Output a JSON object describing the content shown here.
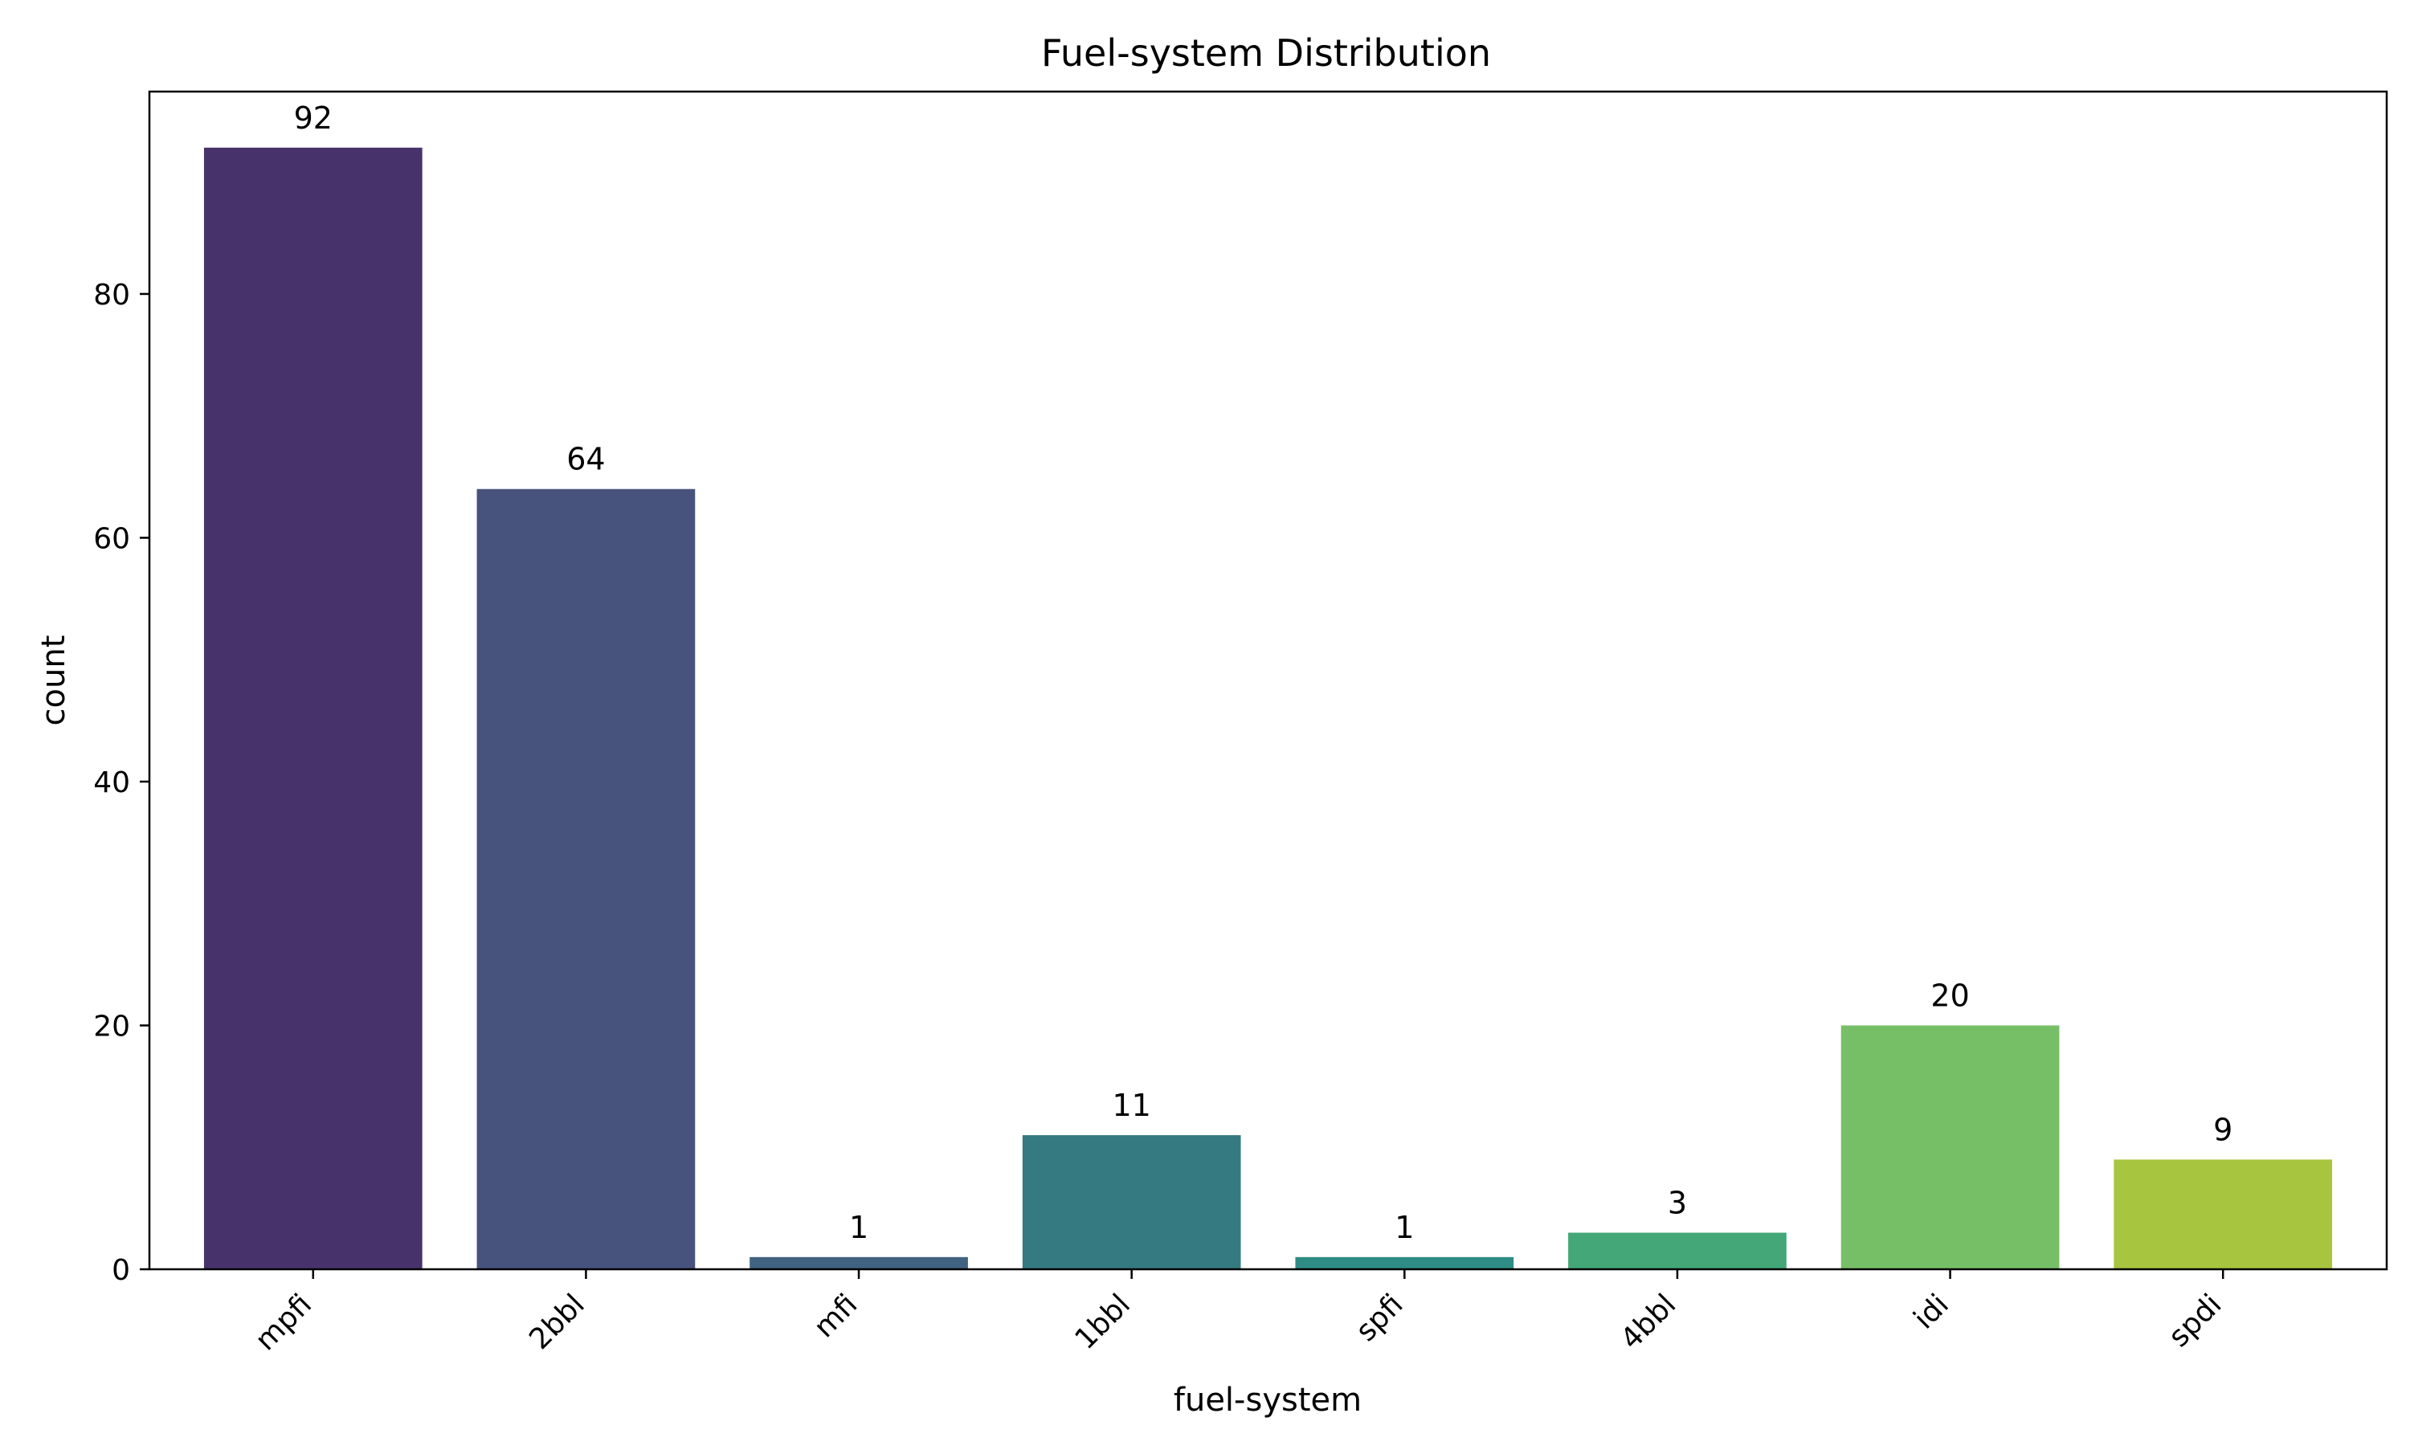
{
  "chart_data": {
    "type": "bar",
    "title": "Fuel-system Distribution",
    "xlabel": "fuel-system",
    "ylabel": "count",
    "categories": [
      "mpfi",
      "2bbl",
      "mfi",
      "1bbl",
      "spfi",
      "4bbl",
      "idi",
      "spdi"
    ],
    "values": [
      92,
      64,
      1,
      11,
      1,
      3,
      20,
      9
    ],
    "data_labels": [
      "92",
      "64",
      "1",
      "11",
      "1",
      "3",
      "20",
      "9"
    ],
    "colors": [
      "#48326b",
      "#48537d",
      "#3f6381",
      "#357a80",
      "#2e8c84",
      "#43a777",
      "#77bf66",
      "#a8c53f"
    ],
    "ylim": [
      0,
      96.6
    ],
    "yticks": [
      0,
      20,
      40,
      60,
      80
    ],
    "ytick_labels": [
      "0",
      "20",
      "40",
      "60",
      "80"
    ],
    "grid": false,
    "legend": "none"
  }
}
